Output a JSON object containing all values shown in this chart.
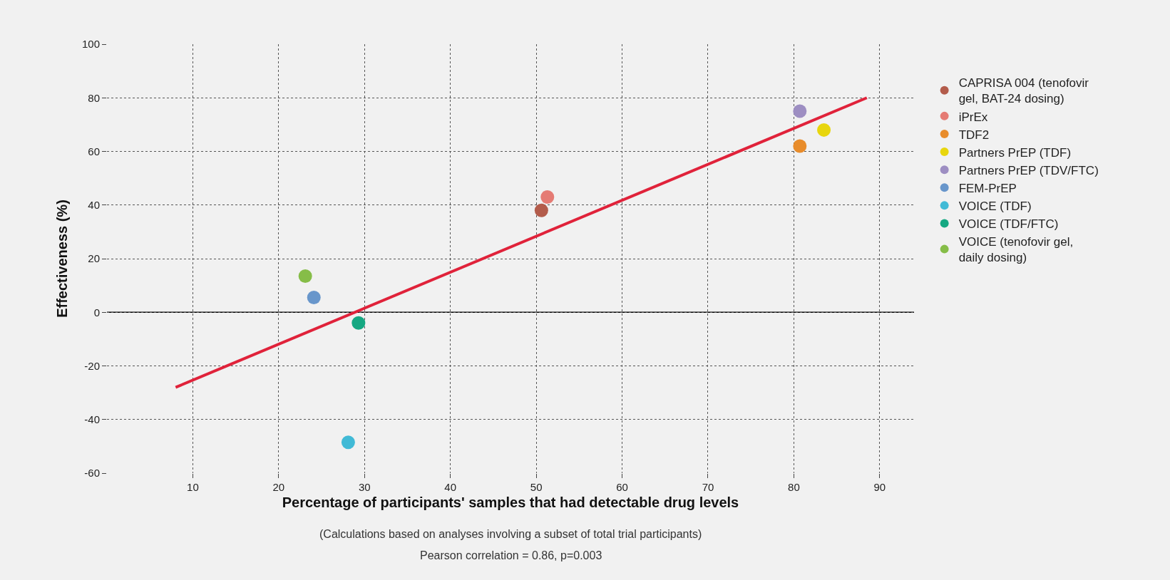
{
  "chart_data": {
    "type": "scatter",
    "xlabel": "Percentage of participants' samples that had detectable drug levels",
    "ylabel": "Effectiveness (%)",
    "annotations": [
      "(Calculations based on analyses involving a subset of total trial participants)",
      "Pearson correlation = 0.86, p=0.003"
    ],
    "xlim": [
      0,
      94
    ],
    "xticks": [
      10,
      20,
      30,
      40,
      50,
      60,
      70,
      80,
      90
    ],
    "ylim": [
      -60,
      100
    ],
    "yticks": [
      -60,
      -40,
      -20,
      0,
      20,
      40,
      60,
      80,
      100
    ],
    "grid": true,
    "legend": "top right",
    "marker": "circle",
    "ref_lines": [
      {
        "axis": "y",
        "value": 0,
        "color": "#000000",
        "line_style": "solid"
      }
    ],
    "series": [
      {
        "name": "CAPRISA 004 (tenofovir gel, BAT-24 dosing)",
        "color": "#b35c4b",
        "x": [
          50.6
        ],
        "values": [
          38
        ]
      },
      {
        "name": "iPrEx",
        "color": "#e57b74",
        "x": [
          51.3
        ],
        "values": [
          43
        ]
      },
      {
        "name": "TDF2",
        "color": "#e88c2b",
        "x": [
          80.7
        ],
        "values": [
          62
        ]
      },
      {
        "name": "Partners PrEP (TDF)",
        "color": "#e8d60d",
        "x": [
          83.5
        ],
        "values": [
          68
        ]
      },
      {
        "name": "Partners PrEP (TDV/FTC)",
        "color": "#9d8ec2",
        "x": [
          80.7
        ],
        "values": [
          75
        ]
      },
      {
        "name": "FEM-PrEP",
        "color": "#6896cb",
        "x": [
          24.1
        ],
        "values": [
          5.5
        ]
      },
      {
        "name": "VOICE (TDF)",
        "color": "#41bad6",
        "x": [
          28.1
        ],
        "values": [
          -48.5
        ]
      },
      {
        "name": "VOICE (TDF/FTC)",
        "color": "#15a882",
        "x": [
          29.3
        ],
        "values": [
          -4
        ]
      },
      {
        "name": "VOICE (tenofovir gel, daily dosing)",
        "color": "#86bd48",
        "x": [
          23.1
        ],
        "values": [
          13.5
        ]
      },
      {
        "type": "line",
        "color": "#e0223a",
        "x": [
          8,
          88.5
        ],
        "values": [
          -28,
          80
        ],
        "line_style": "solid",
        "marker": "none"
      }
    ]
  }
}
